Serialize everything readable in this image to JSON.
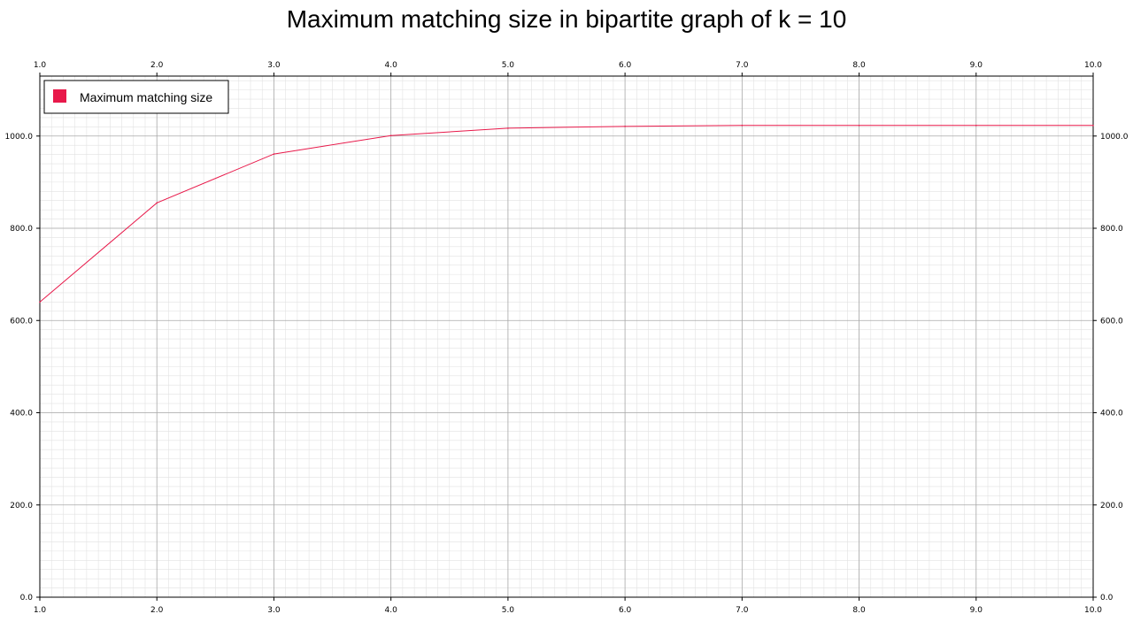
{
  "chart_data": {
    "type": "line",
    "title": "Maximum matching size in bipartite graph of k = 10",
    "xlabel": "",
    "ylabel": "",
    "xlim": [
      1.0,
      10.0
    ],
    "ylim": [
      0.0,
      1130.0
    ],
    "x_ticks": [
      "1.0",
      "2.0",
      "3.0",
      "4.0",
      "5.0",
      "6.0",
      "7.0",
      "8.0",
      "9.0",
      "10.0"
    ],
    "y_ticks": [
      "0.0",
      "200.0",
      "400.0",
      "600.0",
      "800.0",
      "1000.0"
    ],
    "grid": true,
    "legend_position": "top-left",
    "series": [
      {
        "name": "Maximum matching size",
        "color": "#e8194a",
        "x": [
          1,
          2,
          3,
          4,
          5,
          6,
          7,
          8,
          9,
          10
        ],
        "values": [
          640,
          855,
          961,
          1001,
          1017,
          1021,
          1023,
          1023,
          1023,
          1023
        ]
      }
    ]
  }
}
